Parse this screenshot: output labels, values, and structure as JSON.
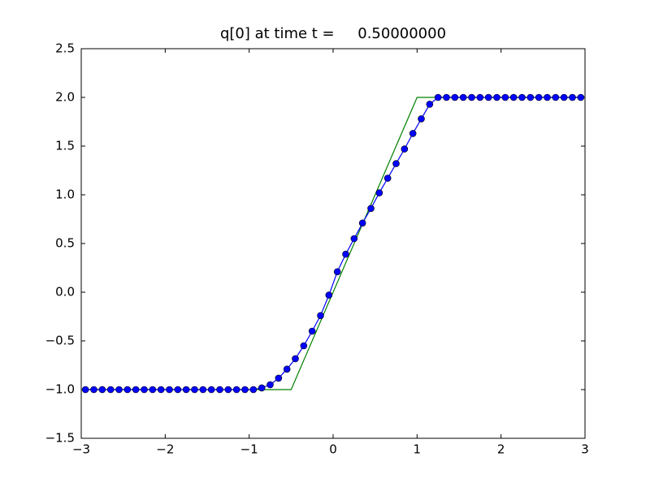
{
  "chart_data": {
    "type": "line",
    "title": "q[0] at time t =     0.50000000",
    "xlim": [
      -3,
      3
    ],
    "ylim": [
      -1.5,
      2.5
    ],
    "xticks": [
      {
        "value": -3,
        "label": "−3"
      },
      {
        "value": -2,
        "label": "−2"
      },
      {
        "value": -1,
        "label": "−1"
      },
      0,
      1,
      2,
      3
    ],
    "yticks": [
      {
        "value": -1.5,
        "label": "−1.5"
      },
      {
        "value": -1.0,
        "label": "−1.0"
      },
      {
        "value": -0.5,
        "label": "−0.5"
      },
      {
        "value": 0.0,
        "label": "0.0"
      },
      0.5,
      {
        "value": 1.0,
        "label": "1.0"
      },
      1.5,
      {
        "value": 2.0,
        "label": "2.0"
      },
      2.5
    ],
    "series": [
      {
        "color": "#008000",
        "marker": false,
        "x": [
          -3,
          -0.5,
          1,
          3
        ],
        "values": [
          -1,
          -1,
          2,
          2
        ]
      },
      {
        "color": "#0000ff",
        "marker": true,
        "x": [
          -2.95,
          -2.85,
          -2.75,
          -2.65,
          -2.55,
          -2.45,
          -2.35,
          -2.25,
          -2.15,
          -2.05,
          -1.95,
          -1.85,
          -1.75,
          -1.65,
          -1.55,
          -1.45,
          -1.35,
          -1.25,
          -1.15,
          -1.05,
          -0.95,
          -0.85,
          -0.75,
          -0.65,
          -0.55,
          -0.45,
          -0.35,
          -0.25,
          -0.15,
          -0.05,
          0.05,
          0.15,
          0.25,
          0.35,
          0.45,
          0.55,
          0.65,
          0.75,
          0.85,
          0.95,
          1.05,
          1.15,
          1.25,
          1.35,
          1.45,
          1.55,
          1.65,
          1.75,
          1.85,
          1.95,
          2.05,
          2.15,
          2.25,
          2.35,
          2.45,
          2.55,
          2.65,
          2.75,
          2.85,
          2.95
        ],
        "values": [
          -1,
          -1,
          -1,
          -1,
          -1,
          -1,
          -1,
          -1,
          -1,
          -1,
          -1,
          -1,
          -1,
          -1,
          -1,
          -1,
          -1,
          -1,
          -1,
          -1,
          -1,
          -0.983,
          -0.95,
          -0.883,
          -0.79,
          -0.683,
          -0.55,
          -0.4,
          -0.24,
          -0.03,
          0.21,
          0.39,
          0.55,
          0.71,
          0.86,
          1.02,
          1.17,
          1.32,
          1.47,
          1.63,
          1.78,
          1.93,
          2,
          2,
          2,
          2,
          2,
          2,
          2,
          2,
          2,
          2,
          2,
          2,
          2,
          2,
          2,
          2,
          2,
          2
        ]
      }
    ]
  }
}
